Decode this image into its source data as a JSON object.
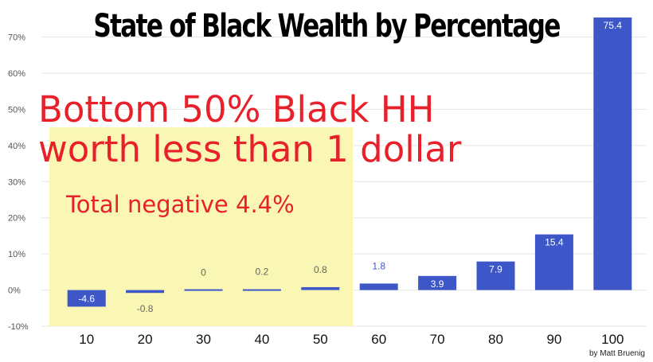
{
  "title": "State of Black Wealth by Percentage",
  "annotations": {
    "headline_line1": "Bottom 50% Black HH",
    "headline_line2": "worth less than 1 dollar",
    "total_negative": "Total negative 4.4%"
  },
  "credit": "by Matt Bruenig",
  "colors": {
    "bar": "#3d57c8",
    "highlight": "#faf6b4",
    "annotation": "#e8202a",
    "grid": "#e6e6e6"
  },
  "chart_data": {
    "type": "bar",
    "categories": [
      "10",
      "20",
      "30",
      "40",
      "50",
      "60",
      "70",
      "80",
      "90",
      "100"
    ],
    "values": [
      -4.6,
      -0.8,
      0,
      0.2,
      0.8,
      1.8,
      3.9,
      7.9,
      15.4,
      75.4
    ],
    "value_labels": [
      "-4.6",
      "-0.8",
      "0",
      "0.2",
      "0.8",
      "1.8",
      "3.9",
      "7.9",
      "15.4",
      "75.4"
    ],
    "y_ticks": [
      -10,
      0,
      10,
      20,
      30,
      40,
      50,
      60,
      70
    ],
    "y_tick_labels": [
      "-10%",
      "0%",
      "10%",
      "20%",
      "30%",
      "40%",
      "50%",
      "60%",
      "70%"
    ],
    "ylim": [
      -10,
      75.4
    ],
    "grid": true,
    "highlighted_categories": [
      "10",
      "20",
      "30",
      "40",
      "50"
    ]
  }
}
